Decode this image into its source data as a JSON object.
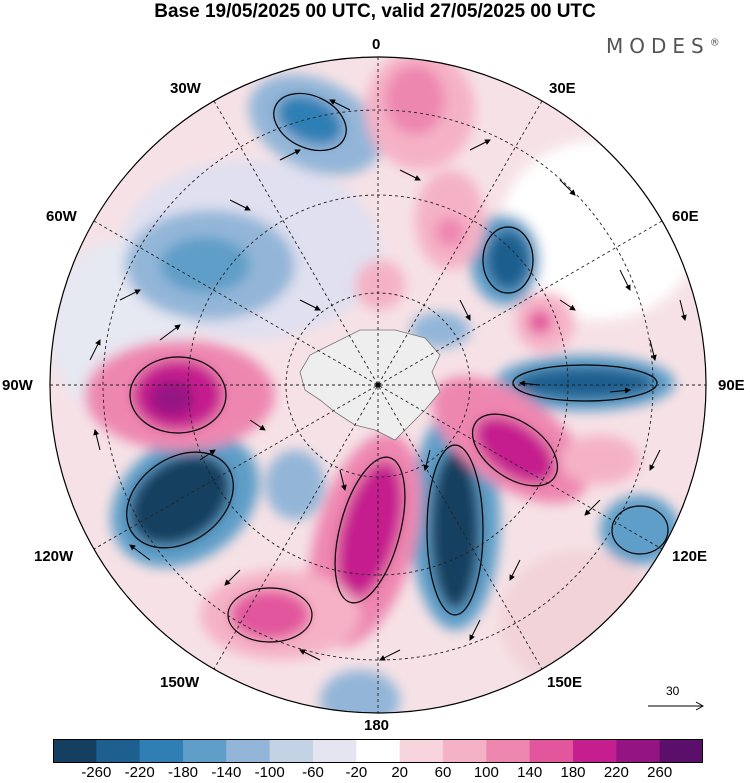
{
  "title": "Base 19/05/2025 00 UTC, valid 27/05/2025 00 UTC",
  "brand": "MODES",
  "brand_mark": "®",
  "longitude_labels": {
    "top": "0",
    "bottom": "180",
    "left": "90W",
    "right": "90E",
    "upper_left_1": "30W",
    "upper_left_2": "60W",
    "upper_right_1": "30E",
    "upper_right_2": "60E",
    "lower_left_1": "120W",
    "lower_left_2": "150W",
    "lower_right_1": "120E",
    "lower_right_2": "150E"
  },
  "vector_reference": "30",
  "colorbar": {
    "ticks": [
      "-260",
      "-220",
      "-180",
      "-140",
      "-100",
      "-60",
      "-20",
      "20",
      "60",
      "100",
      "140",
      "180",
      "220",
      "260"
    ],
    "colors": [
      "#143f60",
      "#1d5f8f",
      "#2f7fb5",
      "#5f9ec8",
      "#93b6d8",
      "#c4d2e6",
      "#e5e5f2",
      "#ffffff",
      "#f8d5dc",
      "#f5b2c6",
      "#ee87b0",
      "#e2569d",
      "#c51e8e",
      "#951483",
      "#5c0f6a"
    ]
  },
  "map": {
    "type": "south-polar stereographic anomaly map with wind vectors",
    "antarctica_fill": "#eeeeee"
  }
}
